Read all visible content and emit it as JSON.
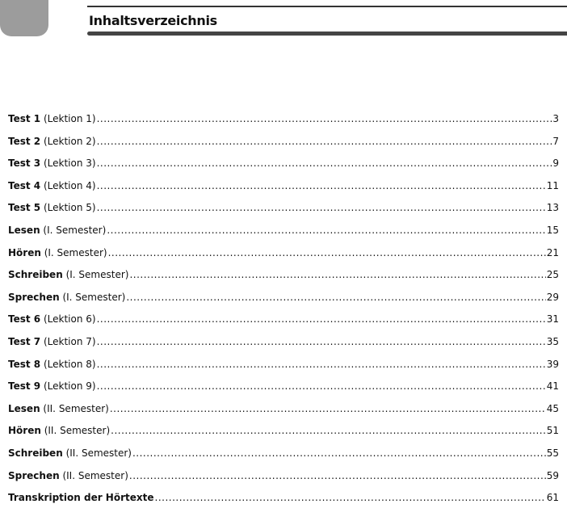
{
  "header": {
    "title": "Inhaltsverzeichnis"
  },
  "entries": [
    {
      "label": "Test 1",
      "sub": "(Lektion 1)",
      "page": "3"
    },
    {
      "label": "Test 2",
      "sub": "(Lektion 2)",
      "page": "7"
    },
    {
      "label": "Test 3",
      "sub": "(Lektion 3)",
      "page": "9"
    },
    {
      "label": "Test 4",
      "sub": "(Lektion 4)",
      "page": "11"
    },
    {
      "label": "Test 5",
      "sub": "(Lektion 5)",
      "page": "13"
    },
    {
      "label": "Lesen",
      "sub": "(I. Semester)",
      "page": "15"
    },
    {
      "label": "Hören",
      "sub": "(I. Semester)",
      "page": "21"
    },
    {
      "label": "Schreiben",
      "sub": "(I. Semester)",
      "page": "25"
    },
    {
      "label": "Sprechen",
      "sub": "(I. Semester)",
      "page": "29"
    },
    {
      "label": "Test 6",
      "sub": "(Lektion 6)",
      "page": "31"
    },
    {
      "label": "Test 7",
      "sub": "(Lektion 7)",
      "page": "35"
    },
    {
      "label": "Test 8",
      "sub": "(Lektion 8)",
      "page": "39"
    },
    {
      "label": "Test 9",
      "sub": "(Lektion 9)",
      "page": "41"
    },
    {
      "label": "Lesen",
      "sub": "(II. Semester)",
      "page": "45"
    },
    {
      "label": "Hören",
      "sub": "(II. Semester)",
      "page": "51"
    },
    {
      "label": "Schreiben",
      "sub": "(II. Semester)",
      "page": "55"
    },
    {
      "label": "Sprechen",
      "sub": "(II. Semester)",
      "page": "59"
    },
    {
      "label": "Transkription der Hörtexte",
      "sub": "",
      "page": "61"
    }
  ]
}
